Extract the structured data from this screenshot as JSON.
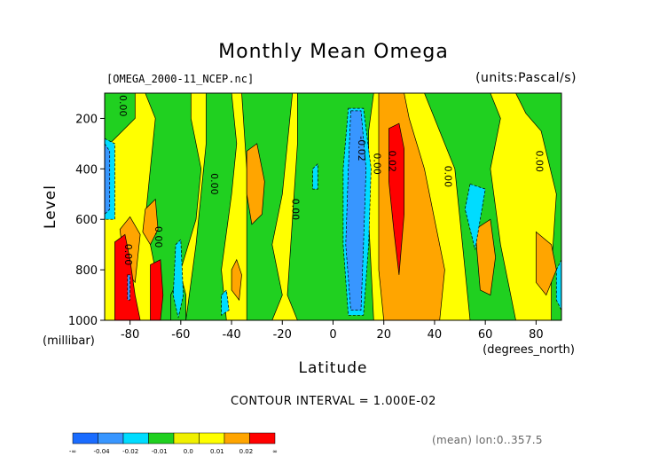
{
  "chart_data": {
    "type": "heatmap",
    "title": "Monthly Mean Omega",
    "file_label": "[OMEGA_2000-11_NCEP.nc]",
    "units_label": "(units:Pascal/s)",
    "xlabel": "Latitude",
    "x_unit_label": "(degrees_north)",
    "ylabel": "Level",
    "y_unit_label": "(millibar)",
    "xlim": [
      -90,
      90
    ],
    "ylim": [
      1000,
      100
    ],
    "x_ticks": [
      -80,
      -60,
      -40,
      -20,
      0,
      20,
      40,
      60,
      80
    ],
    "x_tick_labels": [
      "-80",
      "-60",
      "-40",
      "-20",
      "0",
      "20",
      "40",
      "60",
      "80"
    ],
    "y_ticks": [
      200,
      400,
      600,
      800,
      1000
    ],
    "y_tick_labels": [
      "200",
      "400",
      "600",
      "800",
      "1000"
    ],
    "contour_interval": "CONTOUR INTERVAL = 1.000E-02",
    "footnote": "(mean) lon:0..357.5",
    "colors": {
      "lt_m004": "#1a6cff",
      "m004": "#3896ff",
      "m002": "#00dcff",
      "m001": "#20d020",
      "z00": "#f0f000",
      "p001": "#ffff00",
      "p002": "#ffa500",
      "gt_p002": "#ff0000"
    },
    "legend": {
      "colors": [
        "#1a6cff",
        "#3896ff",
        "#00dcff",
        "#20d020",
        "#f0f000",
        "#ffff00",
        "#ffa500",
        "#ff0000"
      ],
      "labels": [
        "-∞",
        "-0.04",
        "-0.02",
        "-0.01",
        "0.0",
        "0.01",
        "0.02",
        "∞"
      ]
    },
    "contour_labels": [
      {
        "text": "0.00",
        "lat": -84,
        "lev": 150
      },
      {
        "text": "0.00",
        "lat": -82,
        "lev": 740
      },
      {
        "text": "0.00",
        "lat": -70,
        "lev": 670
      },
      {
        "text": "0.00",
        "lat": -48,
        "lev": 460
      },
      {
        "text": "0.00",
        "lat": -16,
        "lev": 560
      },
      {
        "text": "-0.02",
        "lat": 10,
        "lev": 320
      },
      {
        "text": "0.00",
        "lat": 16,
        "lev": 380
      },
      {
        "text": "0.02",
        "lat": 22,
        "lev": 370
      },
      {
        "text": "0.00",
        "lat": 44,
        "lev": 430
      },
      {
        "text": "0.00",
        "lat": 80,
        "lev": 370
      }
    ],
    "regions": [
      {
        "level": "p001",
        "polys": [
          [
            [
              -90,
              100
            ],
            [
              90,
              100
            ],
            [
              90,
              1000
            ],
            [
              -90,
              1000
            ]
          ]
        ]
      },
      {
        "level": "m001",
        "polys": [
          [
            [
              -90,
              100
            ],
            [
              -78,
              100
            ],
            [
              -78,
              200
            ],
            [
              -86,
              280
            ],
            [
              -90,
              320
            ]
          ],
          [
            [
              -74,
              100
            ],
            [
              -56,
              100
            ],
            [
              -56,
              200
            ],
            [
              -52,
              400
            ],
            [
              -54,
              600
            ],
            [
              -60,
              800
            ],
            [
              -62,
              1000
            ],
            [
              -68,
              1000
            ],
            [
              -70,
              800
            ],
            [
              -74,
              600
            ],
            [
              -72,
              400
            ],
            [
              -70,
              200
            ]
          ],
          [
            [
              -50,
              100
            ],
            [
              -40,
              100
            ],
            [
              -38,
              300
            ],
            [
              -40,
              500
            ],
            [
              -44,
              800
            ],
            [
              -42,
              1000
            ],
            [
              -58,
              1000
            ],
            [
              -54,
              700
            ],
            [
              -52,
              500
            ],
            [
              -50,
              300
            ]
          ],
          [
            [
              -36,
              100
            ],
            [
              -16,
              100
            ],
            [
              -18,
              300
            ],
            [
              -20,
              500
            ],
            [
              -24,
              700
            ],
            [
              -20,
              900
            ],
            [
              -24,
              1000
            ],
            [
              -34,
              1000
            ],
            [
              -34,
              700
            ],
            [
              -34,
              400
            ]
          ],
          [
            [
              -14,
              100
            ],
            [
              16,
              100
            ],
            [
              14,
              250
            ],
            [
              14,
              600
            ],
            [
              16,
              1000
            ],
            [
              -14,
              1000
            ],
            [
              -18,
              900
            ],
            [
              -16,
              600
            ],
            [
              -14,
              300
            ]
          ],
          [
            [
              36,
              100
            ],
            [
              62,
              100
            ],
            [
              66,
              200
            ],
            [
              62,
              400
            ],
            [
              66,
              700
            ],
            [
              70,
              900
            ],
            [
              72,
              1000
            ],
            [
              54,
              1000
            ],
            [
              52,
              800
            ],
            [
              50,
              600
            ],
            [
              48,
              400
            ],
            [
              42,
              250
            ]
          ],
          [
            [
              72,
              100
            ],
            [
              90,
              100
            ],
            [
              90,
              1000
            ],
            [
              86,
              1000
            ],
            [
              86,
              800
            ],
            [
              88,
              500
            ],
            [
              82,
              250
            ],
            [
              76,
              180
            ]
          ],
          [
            [
              -60,
              820
            ],
            [
              -58,
              900
            ],
            [
              -58,
              1000
            ],
            [
              -64,
              1000
            ],
            [
              -64,
              900
            ]
          ]
        ]
      },
      {
        "level": "p002",
        "polys": [
          [
            [
              -34,
              330
            ],
            [
              -30,
              300
            ],
            [
              -27,
              450
            ],
            [
              -28,
              580
            ],
            [
              -32,
              620
            ],
            [
              -34,
              500
            ]
          ],
          [
            [
              -38,
              760
            ],
            [
              -36,
              820
            ],
            [
              -37,
              920
            ],
            [
              -40,
              880
            ],
            [
              -40,
              800
            ]
          ],
          [
            [
              -74,
              560
            ],
            [
              -70,
              520
            ],
            [
              -69,
              640
            ],
            [
              -72,
              700
            ],
            [
              -75,
              650
            ]
          ],
          [
            [
              -84,
              640
            ],
            [
              -80,
              590
            ],
            [
              -76,
              660
            ],
            [
              -78,
              850
            ],
            [
              -82,
              800
            ]
          ],
          [
            [
              18,
              100
            ],
            [
              28,
              100
            ],
            [
              30,
              200
            ],
            [
              36,
              400
            ],
            [
              40,
              600
            ],
            [
              44,
              800
            ],
            [
              42,
              1000
            ],
            [
              20,
              1000
            ],
            [
              18,
              800
            ],
            [
              18,
              500
            ],
            [
              18,
              300
            ]
          ],
          [
            [
              56,
              640
            ],
            [
              62,
              600
            ],
            [
              64,
              750
            ],
            [
              62,
              900
            ],
            [
              58,
              880
            ]
          ],
          [
            [
              80,
              650
            ],
            [
              86,
              700
            ],
            [
              88,
              800
            ],
            [
              84,
              900
            ],
            [
              80,
              850
            ]
          ]
        ]
      },
      {
        "level": "gt_p002",
        "polys": [
          [
            [
              22,
              240
            ],
            [
              26,
              220
            ],
            [
              28,
              320
            ],
            [
              28,
              580
            ],
            [
              26,
              820
            ],
            [
              24,
              650
            ],
            [
              22,
              450
            ]
          ],
          [
            [
              -86,
              690
            ],
            [
              -82,
              660
            ],
            [
              -80,
              760
            ],
            [
              -78,
              900
            ],
            [
              -76,
              1000
            ],
            [
              -86,
              1000
            ],
            [
              -86,
              860
            ]
          ],
          [
            [
              -72,
              780
            ],
            [
              -68,
              760
            ],
            [
              -67,
              900
            ],
            [
              -68,
              1000
            ],
            [
              -72,
              1000
            ]
          ]
        ]
      },
      {
        "level": "m002",
        "polys": [
          [
            [
              -90,
              280
            ],
            [
              -86,
              300
            ],
            [
              -86,
              600
            ],
            [
              -90,
              600
            ]
          ],
          [
            [
              6,
              160
            ],
            [
              12,
              160
            ],
            [
              15,
              400
            ],
            [
              14,
              700
            ],
            [
              12,
              980
            ],
            [
              6,
              980
            ],
            [
              4,
              700
            ],
            [
              4,
              400
            ]
          ],
          [
            [
              -62,
              700
            ],
            [
              -60,
              680
            ],
            [
              -59,
              900
            ],
            [
              -61,
              990
            ],
            [
              -63,
              900
            ]
          ],
          [
            [
              -8,
              400
            ],
            [
              -6,
              380
            ],
            [
              -6,
              480
            ],
            [
              -8,
              480
            ]
          ],
          [
            [
              -44,
              900
            ],
            [
              -42,
              880
            ],
            [
              -41,
              960
            ],
            [
              -44,
              980
            ]
          ],
          [
            [
              54,
              460
            ],
            [
              60,
              480
            ],
            [
              58,
              600
            ],
            [
              56,
              720
            ],
            [
              54,
              640
            ],
            [
              52,
              560
            ]
          ],
          [
            [
              88,
              800
            ],
            [
              90,
              760
            ],
            [
              90,
              960
            ],
            [
              88,
              920
            ]
          ]
        ]
      },
      {
        "level": "m004",
        "polys": [
          [
            [
              7,
              170
            ],
            [
              11,
              170
            ],
            [
              13,
              400
            ],
            [
              12,
              700
            ],
            [
              11,
              960
            ],
            [
              7,
              960
            ],
            [
              5,
              700
            ],
            [
              6,
              400
            ]
          ],
          [
            [
              -90,
              300
            ],
            [
              -88,
              330
            ],
            [
              -88,
              560
            ],
            [
              -90,
              580
            ]
          ],
          [
            [
              -81,
              820
            ],
            [
              -80,
              820
            ],
            [
              -80,
              920
            ],
            [
              -81,
              920
            ]
          ]
        ]
      }
    ]
  }
}
